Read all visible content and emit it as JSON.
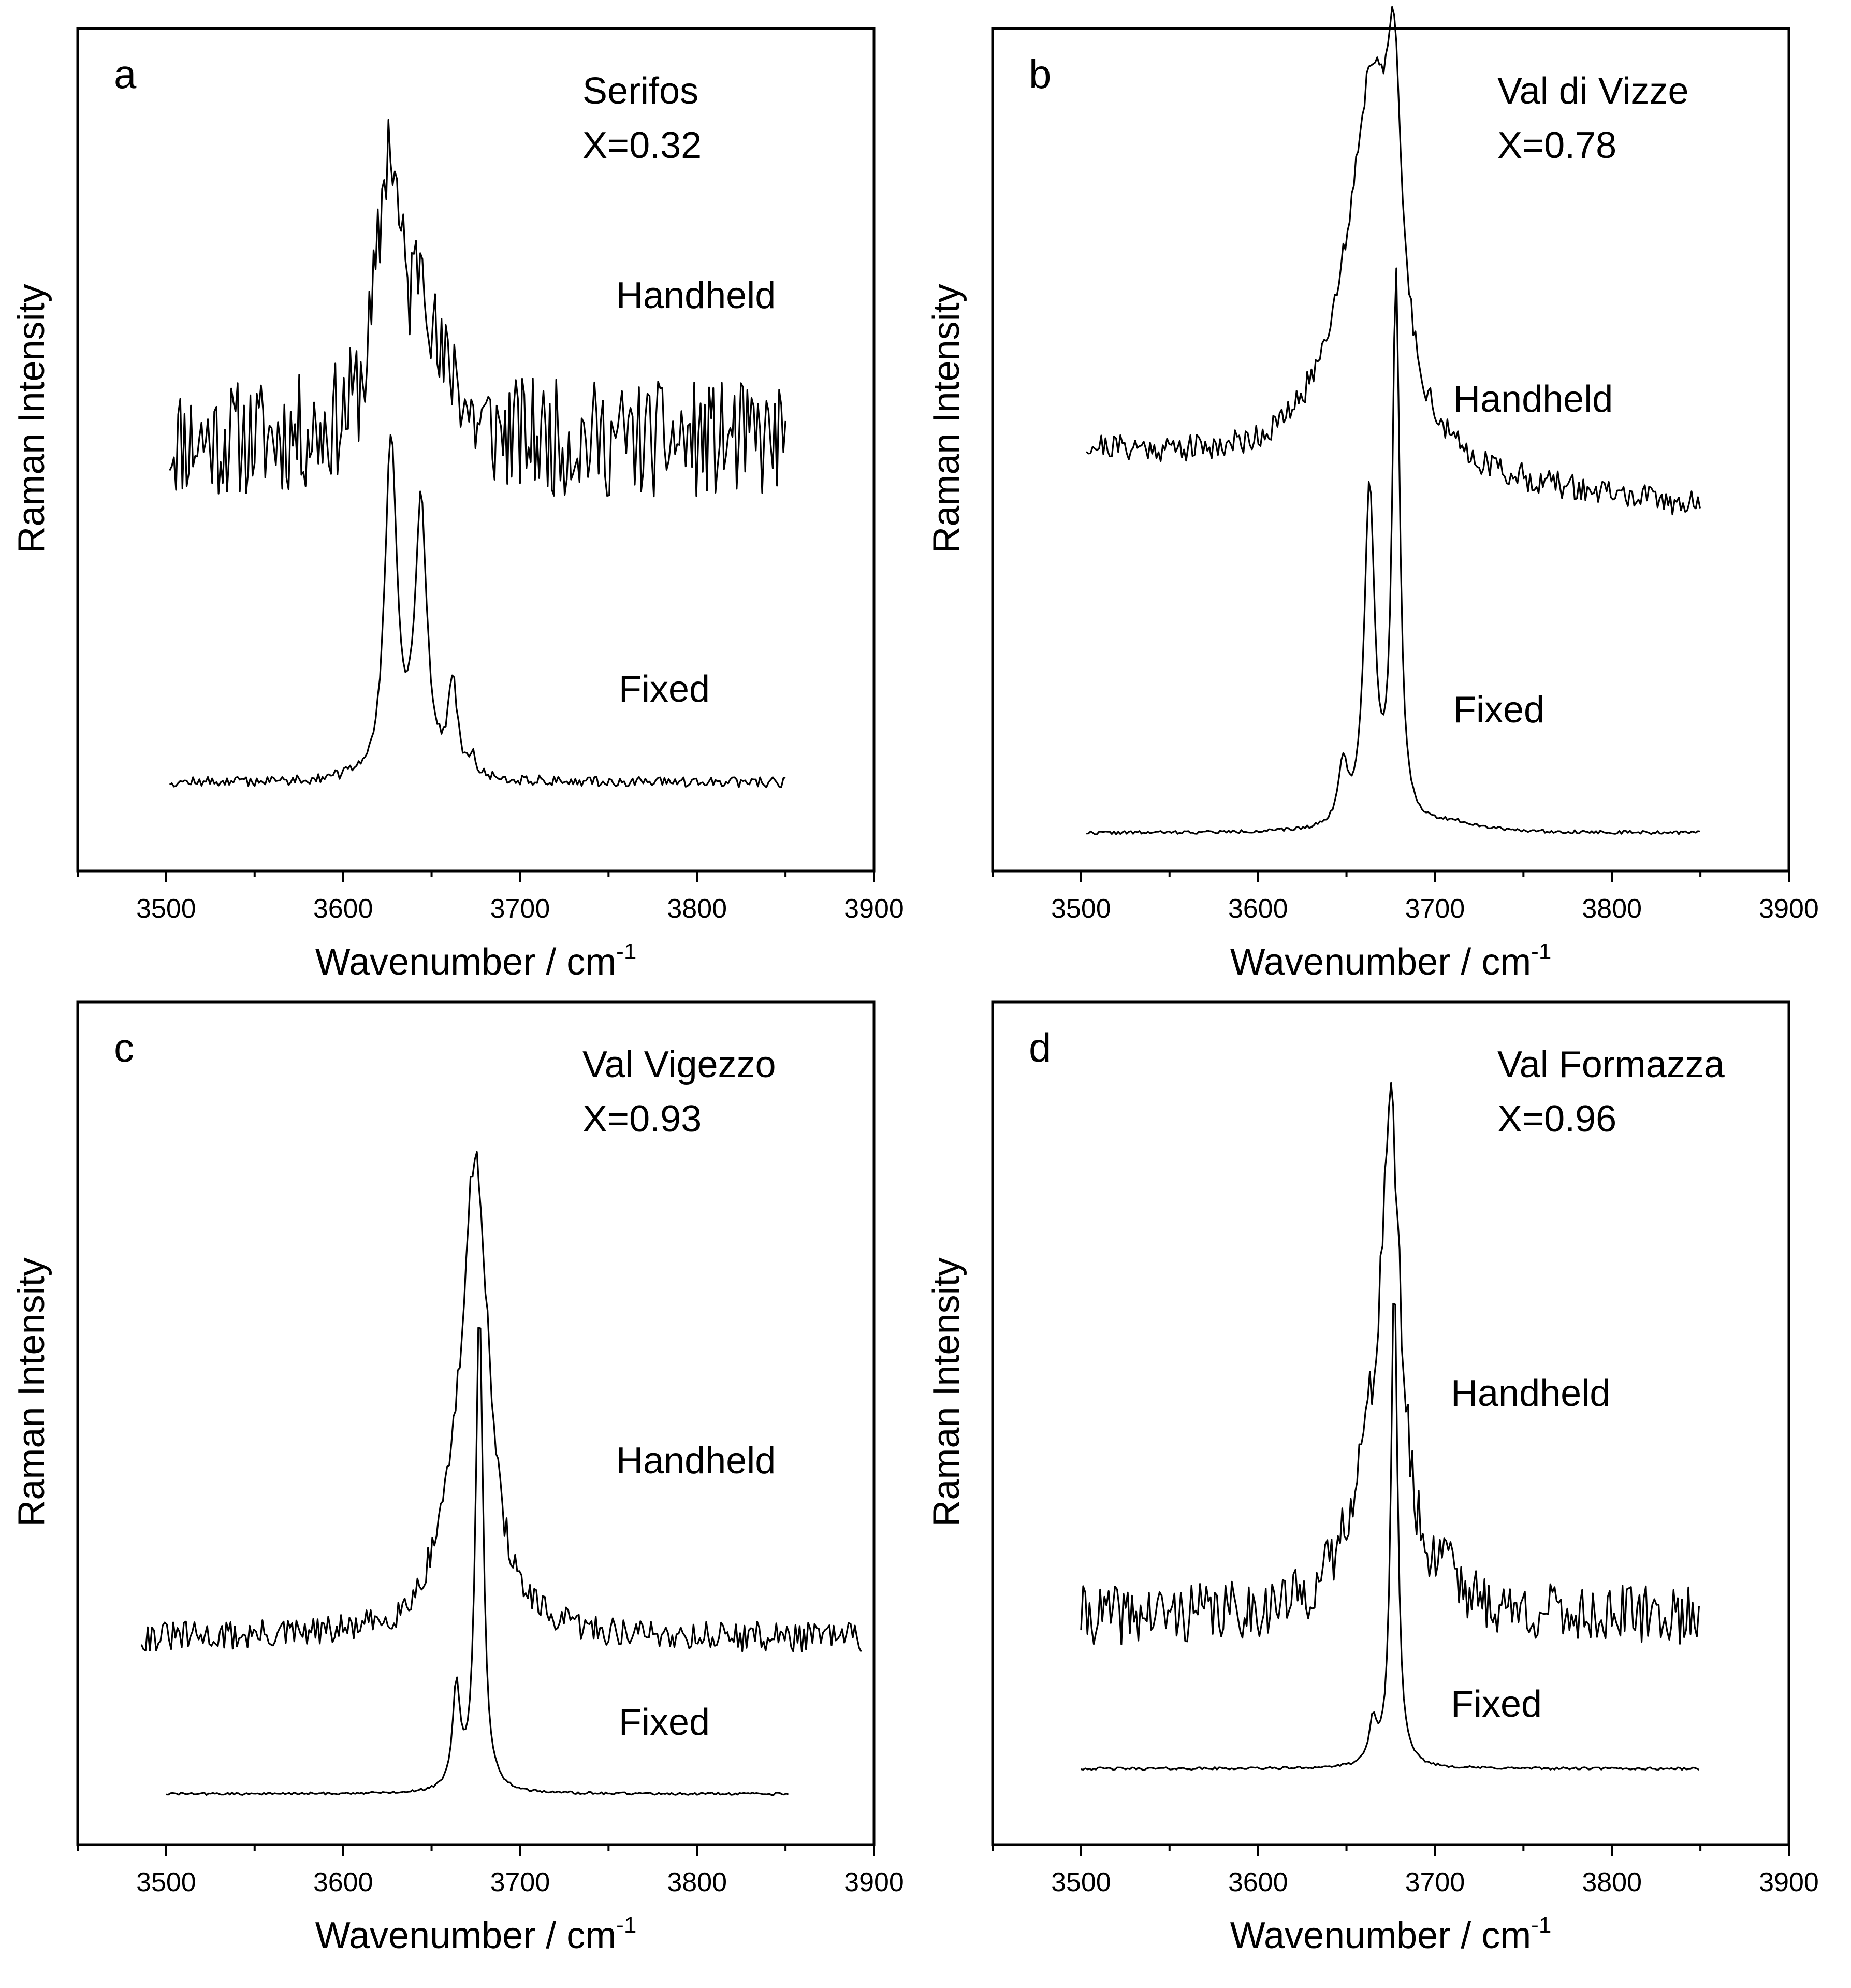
{
  "chart_data": [
    {
      "type": "line",
      "panel": "a",
      "sample": "Serifos",
      "composition": "X=0.32",
      "xlabel": "Wavenumber / cm",
      "xlabel_sup": "-1",
      "ylabel": "Raman Intensity",
      "xlim": [
        3450,
        3900
      ],
      "ylim": [
        0,
        1
      ],
      "xticks": [
        3500,
        3600,
        3700,
        3800,
        3900
      ],
      "series": [
        {
          "name": "Handheld",
          "x_range": [
            3502,
            3850
          ],
          "baseline": 0.51,
          "noise": 0.07,
          "seed": 11,
          "peaks": [
            {
              "center": 3626,
              "height": 0.34,
              "width": 8
            },
            {
              "center": 3645,
              "height": 0.18,
              "width": 6
            },
            {
              "center": 3663,
              "height": 0.06,
              "width": 5
            }
          ]
        },
        {
          "name": "Fixed",
          "x_range": [
            3502,
            3850
          ],
          "baseline": 0.105,
          "noise": 0.006,
          "seed": 12,
          "peaks": [
            {
              "center": 3627,
              "height": 0.4,
              "width": 4
            },
            {
              "center": 3644,
              "height": 0.32,
              "width": 4
            },
            {
              "center": 3662,
              "height": 0.11,
              "width": 3
            },
            {
              "center": 3673,
              "height": 0.02,
              "width": 2
            }
          ]
        }
      ],
      "labels": {
        "handheld": "Handheld",
        "fixed": "Fixed"
      }
    },
    {
      "type": "line",
      "panel": "b",
      "sample": "Val di Vizze",
      "composition": "X=0.78",
      "xlabel": "Wavenumber / cm",
      "xlabel_sup": "-1",
      "ylabel": "Raman Intensity",
      "xlim": [
        3450,
        3900
      ],
      "ylim": [
        0,
        1
      ],
      "xticks": [
        3500,
        3600,
        3700,
        3800,
        3900
      ],
      "series": [
        {
          "name": "Handheld",
          "x_range": [
            3503,
            3850
          ],
          "baseline": 0.5,
          "baseline_slope": -0.0002,
          "noise": 0.016,
          "seed": 21,
          "peaks": [
            {
              "center": 3665,
              "height": 0.38,
              "width": 14
            },
            {
              "center": 3677,
              "height": 0.27,
              "width": 5
            },
            {
              "center": 3652,
              "height": 0.1,
              "width": 25
            }
          ]
        },
        {
          "name": "Fixed",
          "x_range": [
            3503,
            3850
          ],
          "baseline": 0.045,
          "noise": 0.002,
          "seed": 22,
          "peaks": [
            {
              "center": 3648,
              "height": 0.07,
              "width": 3
            },
            {
              "center": 3663,
              "height": 0.4,
              "width": 3.5
            },
            {
              "center": 3678,
              "height": 0.65,
              "width": 2.5
            },
            {
              "center": 3710,
              "height": 0.01,
              "width": 20
            }
          ]
        }
      ],
      "labels": {
        "handheld": "Handheld",
        "fixed": "Fixed"
      }
    },
    {
      "type": "line",
      "panel": "c",
      "sample": "Val Vigezzo",
      "composition": "X=0.93",
      "xlabel": "Wavenumber / cm",
      "xlabel_sup": "-1",
      "ylabel": "Raman Intensity",
      "xlim": [
        3450,
        3900
      ],
      "ylim": [
        0,
        1
      ],
      "xticks": [
        3500,
        3600,
        3700,
        3800,
        3900
      ],
      "series": [
        {
          "name": "Handheld",
          "x_range": [
            3486,
            3893
          ],
          "baseline": 0.245,
          "noise": 0.018,
          "seed": 31,
          "peaks": [
            {
              "center": 3675,
              "height": 0.55,
              "width": 9
            },
            {
              "center": 3660,
              "height": 0.07,
              "width": 12
            }
          ]
        },
        {
          "name": "Fixed",
          "x_range": [
            3500,
            3852
          ],
          "baseline": 0.06,
          "noise": 0.0015,
          "seed": 32,
          "peaks": [
            {
              "center": 3664,
              "height": 0.12,
              "width": 2.5
            },
            {
              "center": 3677,
              "height": 0.58,
              "width": 2.5
            }
          ]
        }
      ],
      "labels": {
        "handheld": "Handheld",
        "fixed": "Fixed"
      }
    },
    {
      "type": "line",
      "panel": "d",
      "sample": "Val Formazza",
      "composition": "X=0.96",
      "xlabel": "Wavenumber / cm",
      "xlabel_sup": "-1",
      "ylabel": "Raman Intensity",
      "xlim": [
        3450,
        3900
      ],
      "ylim": [
        0,
        1
      ],
      "xticks": [
        3500,
        3600,
        3700,
        3800,
        3900
      ],
      "series": [
        {
          "name": "Handheld",
          "x_range": [
            3500,
            3850
          ],
          "baseline": 0.27,
          "noise": 0.035,
          "seed": 41,
          "peaks": [
            {
              "center": 3675,
              "height": 0.55,
              "width": 7
            },
            {
              "center": 3660,
              "height": 0.12,
              "width": 14
            },
            {
              "center": 3707,
              "height": 0.06,
              "width": 5
            }
          ]
        },
        {
          "name": "Fixed",
          "x_range": [
            3500,
            3850
          ],
          "baseline": 0.09,
          "noise": 0.0015,
          "seed": 42,
          "peaks": [
            {
              "center": 3665,
              "height": 0.05,
              "width": 2.5
            },
            {
              "center": 3677,
              "height": 0.59,
              "width": 2.2
            }
          ]
        }
      ],
      "labels": {
        "handheld": "Handheld",
        "fixed": "Fixed"
      }
    }
  ]
}
